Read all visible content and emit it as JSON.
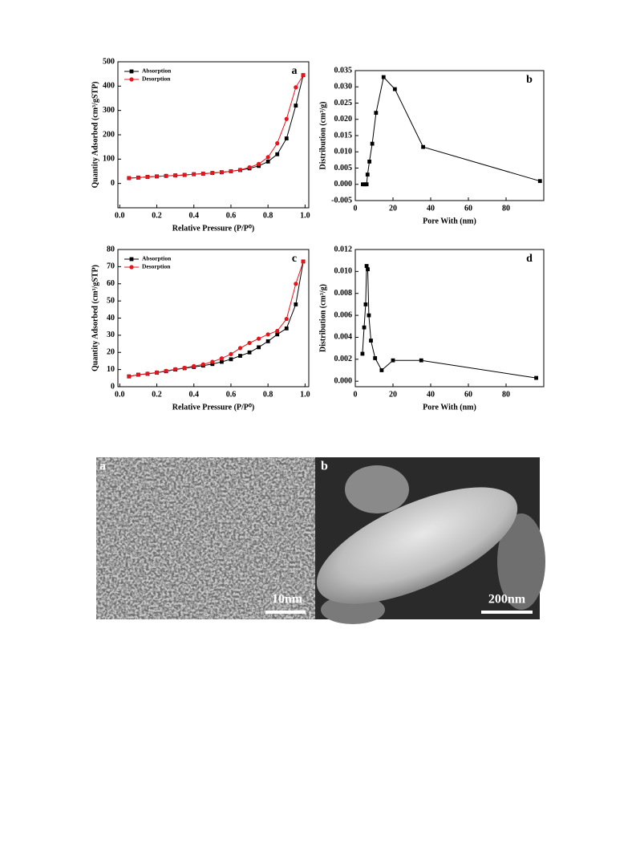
{
  "chart_data": [
    {
      "type": "line",
      "annotation": "a",
      "xlabel": "Relative Pressure (P/P⁰)",
      "ylabel": "Quantity Adsorbed (cm³/gSTP)",
      "x": [
        0.05,
        0.1,
        0.15,
        0.2,
        0.25,
        0.3,
        0.35,
        0.4,
        0.45,
        0.5,
        0.55,
        0.6,
        0.65,
        0.7,
        0.75,
        0.8,
        0.85,
        0.9,
        0.95,
        0.99
      ],
      "series": [
        {
          "name": "Absorption",
          "color": "#000000",
          "marker": "square",
          "values": [
            22,
            24,
            27,
            29,
            31,
            33,
            35,
            38,
            40,
            43,
            46,
            50,
            55,
            62,
            72,
            90,
            120,
            185,
            320,
            445
          ]
        },
        {
          "name": "Desorption",
          "color": "#e8141b",
          "marker": "circle",
          "values": [
            22,
            24,
            27,
            29,
            31,
            33,
            35,
            38,
            40,
            43,
            46,
            50,
            56,
            66,
            80,
            108,
            165,
            265,
            395,
            445
          ]
        }
      ],
      "xlim": [
        -0.01,
        1.02
      ],
      "xticks": [
        {
          "value": 0,
          "label": "0.0"
        },
        0.2,
        0.4,
        0.6,
        0.8,
        {
          "value": 1,
          "label": "1.0"
        }
      ],
      "ylim": [
        -100,
        500
      ],
      "yticks": [
        0,
        100,
        200,
        300,
        400,
        500
      ],
      "legend": "upper left"
    },
    {
      "type": "line",
      "annotation": "b",
      "xlabel": "Pore With (nm)",
      "ylabel": "Distribution (cm³/g)",
      "x": [
        4,
        5,
        6,
        6.5,
        7.5,
        9,
        11,
        15,
        21,
        36,
        98
      ],
      "values": [
        0,
        0,
        0,
        0.003,
        0.007,
        0.0125,
        0.022,
        0.033,
        0.0293,
        0.0115,
        0.001
      ],
      "color": "#000000",
      "marker": "square",
      "xlim": [
        0,
        100
      ],
      "xticks": [
        0,
        20,
        40,
        60,
        80
      ],
      "ylim": [
        -0.005,
        0.035
      ],
      "yticks": [
        -0.005,
        {
          "value": 0,
          "label": "0.000"
        },
        0.005,
        {
          "value": 0.01,
          "label": "0.010"
        },
        0.015,
        {
          "value": 0.02,
          "label": "0.020"
        },
        0.025,
        {
          "value": 0.03,
          "label": "0.030"
        },
        0.035
      ]
    },
    {
      "type": "line",
      "annotation": "c",
      "xlabel": "Relative Pressure (P/P⁰)",
      "ylabel": "Quantity Adsorbed (cm³/gSTP)",
      "x": [
        0.05,
        0.1,
        0.15,
        0.2,
        0.25,
        0.3,
        0.35,
        0.4,
        0.45,
        0.5,
        0.55,
        0.6,
        0.65,
        0.7,
        0.75,
        0.8,
        0.85,
        0.9,
        0.95,
        0.99
      ],
      "series": [
        {
          "name": "Absorption",
          "color": "#000000",
          "marker": "square",
          "values": [
            6,
            7,
            7.5,
            8.2,
            9,
            10,
            10.8,
            11.5,
            12.3,
            13.2,
            14.5,
            16,
            18,
            20,
            23,
            26.5,
            30.5,
            34,
            48,
            73
          ]
        },
        {
          "name": "Desorption",
          "color": "#e8141b",
          "marker": "circle",
          "values": [
            6,
            7,
            7.6,
            8.3,
            9.2,
            10.2,
            11,
            12,
            13,
            14.5,
            16.5,
            19,
            22.5,
            25.5,
            28,
            30.5,
            32.5,
            39.5,
            60,
            73
          ]
        }
      ],
      "xlim": [
        -0.01,
        1.02
      ],
      "xticks": [
        {
          "value": 0,
          "label": "0.0"
        },
        0.2,
        0.4,
        0.6,
        0.8,
        {
          "value": 1,
          "label": "1.0"
        }
      ],
      "ylim": [
        0,
        80
      ],
      "yticks": [
        0,
        10,
        20,
        30,
        40,
        50,
        60,
        70,
        80
      ],
      "legend": "upper left"
    },
    {
      "type": "line",
      "annotation": "d",
      "xlabel": "Pore With (nm)",
      "ylabel": "Distribution (cm³/g)",
      "x": [
        3.8,
        4.7,
        5.5,
        6,
        6.6,
        7.2,
        8.3,
        10.5,
        14,
        20,
        35,
        96
      ],
      "values": [
        0.0025,
        0.0049,
        0.007,
        0.0105,
        0.0102,
        0.006,
        0.0037,
        0.0021,
        0.001,
        0.0019,
        0.0019,
        0.0003
      ],
      "color": "#000000",
      "marker": "square",
      "xlim": [
        0,
        100
      ],
      "xticks": [
        0,
        20,
        40,
        60,
        80
      ],
      "ylim": [
        -0.0005,
        0.012
      ],
      "yticks": [
        {
          "value": 0,
          "label": "0.000"
        },
        0.002,
        0.004,
        0.006,
        0.008,
        {
          "value": 0.01,
          "label": "0.010"
        },
        0.012
      ]
    }
  ],
  "images": [
    {
      "label": "a",
      "scale_bar": "10nm"
    },
    {
      "label": "b",
      "scale_bar": "200nm"
    }
  ]
}
